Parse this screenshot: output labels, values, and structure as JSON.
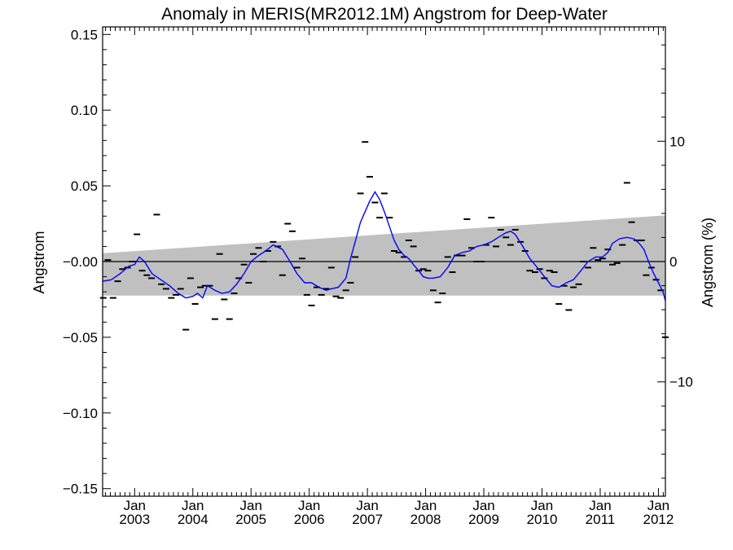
{
  "chart_data": {
    "type": "scatter",
    "title": "Anomaly in MERIS(MR2012.1M) Angstrom for Deep-Water",
    "ylabel": "Angstrom",
    "y2label": "Angstrom (%)",
    "ylim": [
      -0.155,
      0.155
    ],
    "y2lim": [
      -19.5,
      19.5
    ],
    "xlim": [
      2002.45,
      2012.12
    ],
    "yticks": [
      -0.15,
      -0.1,
      -0.05,
      0.0,
      0.05,
      0.1,
      0.15
    ],
    "ytick_labels": [
      "−0.15",
      "−0.10",
      "−0.05",
      "−0.00",
      "0.05",
      "0.10",
      "0.15"
    ],
    "y2ticks": [
      -10,
      0,
      10
    ],
    "y2tick_labels": [
      "−10",
      "0",
      "10"
    ],
    "xticks": [
      2003,
      2004,
      2005,
      2006,
      2007,
      2008,
      2009,
      2010,
      2011,
      2012
    ],
    "xtick_month": "Jan",
    "xtick_years": [
      "2003",
      "2004",
      "2005",
      "2006",
      "2007",
      "2008",
      "2009",
      "2010",
      "2011",
      "2012"
    ],
    "zero_line": 0,
    "band": {
      "color": "#c0c0c0",
      "x": [
        2002.45,
        2012.12
      ],
      "upper": [
        0.0055,
        0.0305
      ],
      "lower": [
        -0.0225,
        -0.0225
      ]
    },
    "series": [
      {
        "kind": "markers",
        "color": "#000000",
        "points": [
          [
            2002.46,
            -0.024
          ],
          [
            2002.54,
            0.001
          ],
          [
            2002.63,
            -0.024
          ],
          [
            2002.71,
            -0.013
          ],
          [
            2002.79,
            -0.005
          ],
          [
            2002.88,
            -0.004
          ],
          [
            2002.96,
            0.0
          ],
          [
            2003.04,
            0.018
          ],
          [
            2003.13,
            -0.006
          ],
          [
            2003.21,
            -0.009
          ],
          [
            2003.29,
            -0.011
          ],
          [
            2003.38,
            0.031
          ],
          [
            2003.46,
            -0.015
          ],
          [
            2003.54,
            -0.018
          ],
          [
            2003.63,
            -0.024
          ],
          [
            2003.71,
            -0.022
          ],
          [
            2003.79,
            -0.018
          ],
          [
            2003.88,
            -0.045
          ],
          [
            2003.96,
            -0.011
          ],
          [
            2004.04,
            -0.028
          ],
          [
            2004.13,
            -0.017
          ],
          [
            2004.21,
            -0.016
          ],
          [
            2004.29,
            -0.016
          ],
          [
            2004.38,
            -0.038
          ],
          [
            2004.46,
            0.005
          ],
          [
            2004.54,
            -0.025
          ],
          [
            2004.63,
            -0.038
          ],
          [
            2004.71,
            -0.021
          ],
          [
            2004.79,
            -0.011
          ],
          [
            2004.88,
            -0.002
          ],
          [
            2004.96,
            -0.014
          ],
          [
            2005.04,
            0.005
          ],
          [
            2005.13,
            0.009
          ],
          [
            2005.21,
            0.0
          ],
          [
            2005.29,
            0.007
          ],
          [
            2005.38,
            0.013
          ],
          [
            2005.46,
            0.01
          ],
          [
            2005.54,
            -0.009
          ],
          [
            2005.63,
            0.025
          ],
          [
            2005.71,
            0.02
          ],
          [
            2005.79,
            -0.004
          ],
          [
            2005.88,
            0.002
          ],
          [
            2005.96,
            -0.022
          ],
          [
            2006.04,
            -0.029
          ],
          [
            2006.13,
            -0.017
          ],
          [
            2006.21,
            -0.022
          ],
          [
            2006.29,
            -0.018
          ],
          [
            2006.38,
            -0.004
          ],
          [
            2006.46,
            -0.023
          ],
          [
            2006.54,
            -0.024
          ],
          [
            2006.63,
            -0.019
          ],
          [
            2006.71,
            -0.014
          ],
          [
            2006.79,
            0.003
          ],
          [
            2006.88,
            0.045
          ],
          [
            2006.96,
            0.079
          ],
          [
            2007.04,
            0.056
          ],
          [
            2007.13,
            0.039
          ],
          [
            2007.21,
            0.029
          ],
          [
            2007.29,
            0.045
          ],
          [
            2007.38,
            0.029
          ],
          [
            2007.46,
            0.007
          ],
          [
            2007.54,
            0.006
          ],
          [
            2007.63,
            0.003
          ],
          [
            2007.71,
            0.014
          ],
          [
            2007.79,
            0.01
          ],
          [
            2007.88,
            -0.006
          ],
          [
            2007.96,
            -0.005
          ],
          [
            2008.04,
            -0.006
          ],
          [
            2008.13,
            -0.019
          ],
          [
            2008.21,
            -0.027
          ],
          [
            2008.29,
            -0.021
          ],
          [
            2008.38,
            0.003
          ],
          [
            2008.46,
            -0.007
          ],
          [
            2008.54,
            0.004
          ],
          [
            2008.63,
            0.004
          ],
          [
            2008.71,
            0.028
          ],
          [
            2008.79,
            0.009
          ],
          [
            2008.88,
            0.0
          ],
          [
            2008.96,
            0.0
          ],
          [
            2009.04,
            0.011
          ],
          [
            2009.13,
            0.029
          ],
          [
            2009.21,
            0.01
          ],
          [
            2009.29,
            0.021
          ],
          [
            2009.38,
            0.016
          ],
          [
            2009.46,
            0.011
          ],
          [
            2009.54,
            0.021
          ],
          [
            2009.63,
            0.013
          ],
          [
            2009.71,
            0.007
          ],
          [
            2009.79,
            -0.006
          ],
          [
            2009.88,
            -0.007
          ],
          [
            2009.96,
            -0.005
          ],
          [
            2010.04,
            -0.011
          ],
          [
            2010.13,
            -0.006
          ],
          [
            2010.21,
            -0.007
          ],
          [
            2010.29,
            -0.028
          ],
          [
            2010.38,
            -0.016
          ],
          [
            2010.46,
            -0.032
          ],
          [
            2010.54,
            -0.017
          ],
          [
            2010.63,
            -0.015
          ],
          [
            2010.71,
            0.0
          ],
          [
            2010.79,
            -0.004
          ],
          [
            2010.88,
            0.009
          ],
          [
            2010.96,
            0.001
          ],
          [
            2011.04,
            0.002
          ],
          [
            2011.13,
            0.008
          ],
          [
            2011.21,
            -0.002
          ],
          [
            2011.29,
            -0.001
          ],
          [
            2011.38,
            0.011
          ],
          [
            2011.46,
            0.052
          ],
          [
            2011.54,
            0.026
          ],
          [
            2011.63,
            0.014
          ],
          [
            2011.71,
            0.014
          ],
          [
            2011.79,
            -0.009
          ],
          [
            2011.88,
            -0.004
          ],
          [
            2011.96,
            -0.012
          ],
          [
            2012.04,
            -0.019
          ],
          [
            2012.12,
            -0.05
          ]
        ]
      },
      {
        "kind": "line",
        "color": "#0000ff",
        "points": [
          [
            2002.45,
            -0.013
          ],
          [
            2002.6,
            -0.012
          ],
          [
            2002.75,
            -0.008
          ],
          [
            2002.9,
            -0.003
          ],
          [
            2003.0,
            -0.002
          ],
          [
            2003.08,
            0.003
          ],
          [
            2003.17,
            0.0
          ],
          [
            2003.3,
            -0.008
          ],
          [
            2003.45,
            -0.012
          ],
          [
            2003.6,
            -0.016
          ],
          [
            2003.75,
            -0.021
          ],
          [
            2003.88,
            -0.024
          ],
          [
            2004.0,
            -0.023
          ],
          [
            2004.08,
            -0.021
          ],
          [
            2004.17,
            -0.024
          ],
          [
            2004.25,
            -0.016
          ],
          [
            2004.38,
            -0.019
          ],
          [
            2004.5,
            -0.021
          ],
          [
            2004.63,
            -0.02
          ],
          [
            2004.75,
            -0.015
          ],
          [
            2004.88,
            -0.008
          ],
          [
            2005.0,
            0.0
          ],
          [
            2005.13,
            0.004
          ],
          [
            2005.25,
            0.007
          ],
          [
            2005.38,
            0.011
          ],
          [
            2005.54,
            0.008
          ],
          [
            2005.67,
            0.0
          ],
          [
            2005.79,
            -0.008
          ],
          [
            2005.92,
            -0.014
          ],
          [
            2006.04,
            -0.014
          ],
          [
            2006.17,
            -0.017
          ],
          [
            2006.29,
            -0.019
          ],
          [
            2006.38,
            -0.018
          ],
          [
            2006.5,
            -0.017
          ],
          [
            2006.63,
            -0.011
          ],
          [
            2006.71,
            0.002
          ],
          [
            2006.79,
            0.013
          ],
          [
            2006.88,
            0.026
          ],
          [
            2006.96,
            0.033
          ],
          [
            2007.04,
            0.04
          ],
          [
            2007.13,
            0.046
          ],
          [
            2007.21,
            0.041
          ],
          [
            2007.29,
            0.033
          ],
          [
            2007.38,
            0.023
          ],
          [
            2007.46,
            0.014
          ],
          [
            2007.54,
            0.008
          ],
          [
            2007.63,
            0.004
          ],
          [
            2007.71,
            0.002
          ],
          [
            2007.79,
            -0.002
          ],
          [
            2007.88,
            -0.006
          ],
          [
            2007.96,
            -0.01
          ],
          [
            2008.04,
            -0.011
          ],
          [
            2008.13,
            -0.011
          ],
          [
            2008.25,
            -0.01
          ],
          [
            2008.38,
            -0.004
          ],
          [
            2008.5,
            0.004
          ],
          [
            2008.63,
            0.006
          ],
          [
            2008.75,
            0.007
          ],
          [
            2008.88,
            0.01
          ],
          [
            2009.0,
            0.011
          ],
          [
            2009.13,
            0.013
          ],
          [
            2009.25,
            0.016
          ],
          [
            2009.38,
            0.019
          ],
          [
            2009.46,
            0.02
          ],
          [
            2009.54,
            0.018
          ],
          [
            2009.67,
            0.01
          ],
          [
            2009.79,
            0.002
          ],
          [
            2009.92,
            -0.004
          ],
          [
            2010.04,
            -0.01
          ],
          [
            2010.17,
            -0.016
          ],
          [
            2010.29,
            -0.017
          ],
          [
            2010.42,
            -0.014
          ],
          [
            2010.54,
            -0.012
          ],
          [
            2010.67,
            -0.006
          ],
          [
            2010.79,
            0.0
          ],
          [
            2010.92,
            0.003
          ],
          [
            2011.04,
            0.003
          ],
          [
            2011.13,
            0.006
          ],
          [
            2011.21,
            0.012
          ],
          [
            2011.33,
            0.015
          ],
          [
            2011.46,
            0.016
          ],
          [
            2011.58,
            0.015
          ],
          [
            2011.67,
            0.012
          ],
          [
            2011.75,
            0.008
          ],
          [
            2011.83,
            0.0
          ],
          [
            2011.92,
            -0.008
          ],
          [
            2012.0,
            -0.014
          ],
          [
            2012.08,
            -0.02
          ],
          [
            2012.12,
            -0.026
          ]
        ]
      }
    ]
  }
}
